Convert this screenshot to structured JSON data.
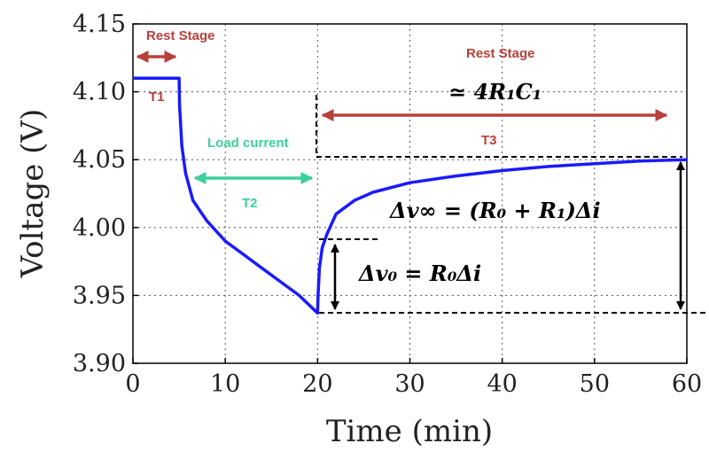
{
  "chart_data": {
    "type": "line",
    "title": "",
    "xlabel": "Time (min)",
    "ylabel": "Voltage (V)",
    "xlim": [
      0,
      60
    ],
    "ylim": [
      3.9,
      4.15
    ],
    "x_ticks": [
      "0",
      "10",
      "20",
      "30",
      "40",
      "50",
      "60"
    ],
    "y_ticks": [
      "3.90",
      "3.95",
      "4.00",
      "4.05",
      "4.10",
      "4.15"
    ],
    "grid": true,
    "series": [
      {
        "color": "#1a1aff",
        "points": [
          [
            0,
            4.11
          ],
          [
            5.0,
            4.11
          ],
          [
            5.05,
            4.09
          ],
          [
            5.3,
            4.06
          ],
          [
            5.7,
            4.04
          ],
          [
            6.5,
            4.02
          ],
          [
            8.0,
            4.005
          ],
          [
            10,
            3.99
          ],
          [
            12,
            3.98
          ],
          [
            14,
            3.97
          ],
          [
            16,
            3.96
          ],
          [
            18,
            3.95
          ],
          [
            20,
            3.937
          ],
          [
            20.05,
            3.95
          ],
          [
            20.2,
            3.97
          ],
          [
            20.5,
            3.985
          ],
          [
            21,
            3.995
          ],
          [
            22,
            4.01
          ],
          [
            24,
            4.02
          ],
          [
            26,
            4.026
          ],
          [
            30,
            4.033
          ],
          [
            35,
            4.038
          ],
          [
            40,
            4.042
          ],
          [
            45,
            4.045
          ],
          [
            50,
            4.047
          ],
          [
            55,
            4.049
          ],
          [
            60,
            4.05
          ]
        ]
      }
    ],
    "annotations": {
      "rest_stage_left": "Rest Stage",
      "t1": "T1",
      "load_current": "Load current",
      "t2": "T2",
      "rest_stage_right": "Rest Stage",
      "tau_approx": "≃ 4R₁C₁",
      "t3": "T3",
      "dv_inf": "Δv∞ = (R₀ + R₁)Δi",
      "dv_0": "Δv₀ = R₀Δi"
    },
    "colors": {
      "curve": "#1a1aff",
      "rest_arrow": "#b8403a",
      "load_arrow": "#3ccf9d",
      "marker": "#000000"
    }
  }
}
